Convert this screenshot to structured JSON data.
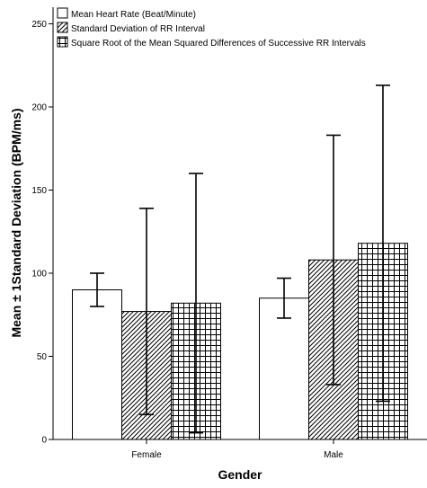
{
  "chart_data": {
    "type": "bar",
    "xlabel": "Gender",
    "ylabel": "Mean ± 1Standard Deviation (BPM/ms)",
    "categories": [
      "Female",
      "Male"
    ],
    "ylim": [
      0,
      260
    ],
    "yticks": [
      0,
      50,
      100,
      150,
      200,
      250
    ],
    "grid": false,
    "legend_position": "top-left",
    "error_bars": "± 1 standard deviation",
    "series": [
      {
        "name": "Mean Heart Rate (Beat/Minute)",
        "pattern": "none",
        "values": [
          90,
          85
        ],
        "sd": [
          10,
          12
        ]
      },
      {
        "name": "Standard Deviation of RR Interval",
        "pattern": "diagonal-hatch",
        "values": [
          77,
          108
        ],
        "sd": [
          62,
          75
        ]
      },
      {
        "name": "Square Root of the Mean Squared Differences of Successive RR Intervals",
        "pattern": "crosshatch",
        "values": [
          82,
          118
        ],
        "sd": [
          78,
          95
        ]
      }
    ]
  }
}
